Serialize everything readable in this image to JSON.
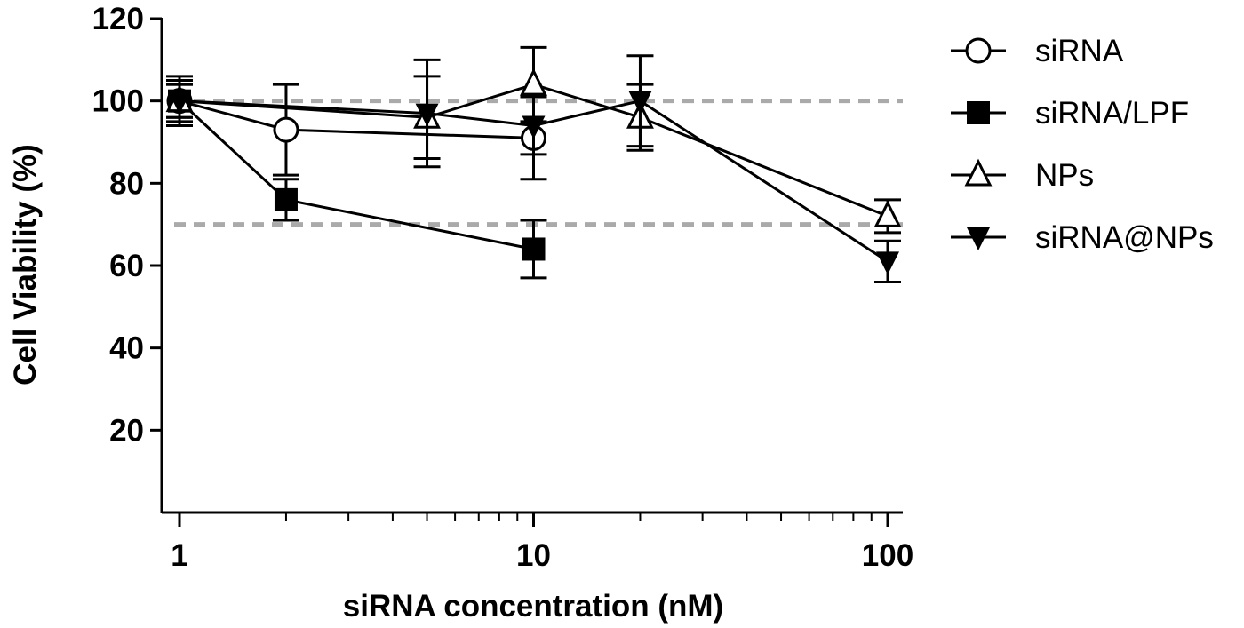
{
  "chart_data": {
    "type": "line",
    "xlabel": "siRNA concentration (nM)",
    "ylabel": "Cell Viability (%)",
    "x_scale": "log",
    "xlim": [
      0.9,
      110
    ],
    "ylim": [
      0,
      120
    ],
    "x_ticks": [
      1,
      10,
      100
    ],
    "x_tick_labels": [
      "1",
      "10",
      "100"
    ],
    "y_ticks": [
      20,
      40,
      60,
      80,
      100,
      120
    ],
    "y_tick_labels": [
      "20",
      "40",
      "60",
      "80",
      "100",
      "120"
    ],
    "reference_lines": [
      100,
      70
    ],
    "grid": false,
    "legend_position": "right",
    "series": [
      {
        "name": "siRNA",
        "marker": "open-circle",
        "points": [
          {
            "x": 1,
            "y": 100,
            "err": 5
          },
          {
            "x": 2,
            "y": 93,
            "err": 11
          },
          {
            "x": 10,
            "y": 91,
            "err": 10
          }
        ]
      },
      {
        "name": "siRNA/LPF",
        "marker": "filled-square",
        "points": [
          {
            "x": 1,
            "y": 100,
            "err": 4
          },
          {
            "x": 2,
            "y": 76,
            "err": 5
          },
          {
            "x": 10,
            "y": 64,
            "err": 7
          }
        ]
      },
      {
        "name": "NPs",
        "marker": "open-triangle-up",
        "points": [
          {
            "x": 1,
            "y": 100,
            "err": 4
          },
          {
            "x": 5,
            "y": 96,
            "err": 10
          },
          {
            "x": 10,
            "y": 104,
            "err": 9
          },
          {
            "x": 20,
            "y": 96,
            "err": 8
          },
          {
            "x": 100,
            "y": 72,
            "err": 4
          }
        ]
      },
      {
        "name": "siRNA@NPs",
        "marker": "filled-triangle-down",
        "points": [
          {
            "x": 1,
            "y": 100,
            "err": 6
          },
          {
            "x": 5,
            "y": 97,
            "err": 13
          },
          {
            "x": 10,
            "y": 94,
            "err": 7
          },
          {
            "x": 20,
            "y": 100,
            "err": 11
          },
          {
            "x": 100,
            "y": 61,
            "err": 5
          }
        ]
      }
    ]
  }
}
